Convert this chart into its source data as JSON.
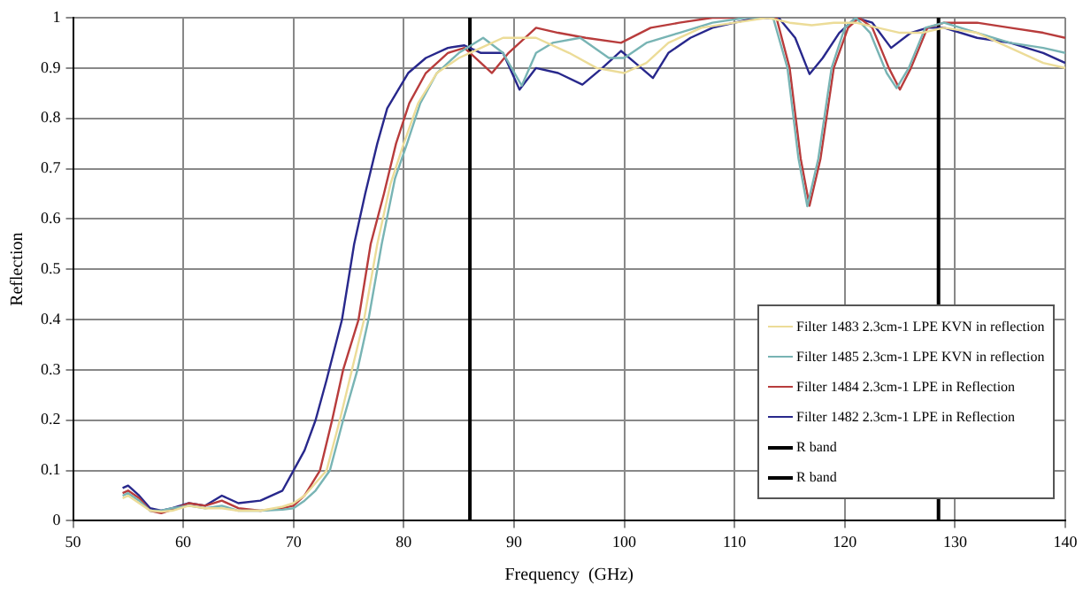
{
  "chart_data": {
    "type": "line",
    "xlabel": "Frequency  (GHz)",
    "ylabel": "Reflection",
    "xlim": [
      50,
      140
    ],
    "xticks": [
      50,
      60,
      70,
      80,
      90,
      100,
      110,
      120,
      130,
      140
    ],
    "ylim": [
      0,
      1
    ],
    "yticks": [
      0,
      0.1,
      0.2,
      0.3,
      0.4,
      0.5,
      0.6,
      0.7,
      0.8,
      0.9,
      1
    ],
    "grid": true,
    "legend": "bottom right",
    "marker": "none",
    "line_style": "solid",
    "series": [
      {
        "name": "Filter 1483 2.3cm-1 LPE KVN in reflection",
        "color": "#ecdc98",
        "x": [
          54.5,
          55,
          56,
          57,
          58,
          59,
          60.5,
          62,
          63.5,
          65,
          67,
          69,
          70,
          71,
          73,
          74.2,
          75.3,
          76.4,
          77.6,
          78.8,
          80,
          81.3,
          83,
          85,
          87,
          89,
          92,
          95,
          97.5,
          100,
          102,
          104,
          107,
          110,
          113,
          115,
          117,
          119,
          121,
          123,
          125,
          127,
          129,
          132,
          135,
          138,
          140
        ],
        "values": [
          0.045,
          0.05,
          0.035,
          0.02,
          0.018,
          0.02,
          0.03,
          0.025,
          0.025,
          0.02,
          0.02,
          0.028,
          0.035,
          0.05,
          0.1,
          0.2,
          0.3,
          0.4,
          0.55,
          0.67,
          0.75,
          0.83,
          0.89,
          0.92,
          0.94,
          0.96,
          0.96,
          0.93,
          0.9,
          0.89,
          0.91,
          0.95,
          0.98,
          0.99,
          1,
          0.99,
          0.985,
          0.99,
          0.99,
          0.98,
          0.97,
          0.97,
          0.98,
          0.97,
          0.94,
          0.91,
          0.9
        ]
      },
      {
        "name": "Filter 1485 2.3cm-1 LPE KVN in reflection",
        "color": "#78b4b4",
        "x": [
          54.5,
          55,
          56,
          57,
          58,
          59,
          60.5,
          62,
          63.5,
          65,
          67,
          69,
          70,
          71,
          72,
          73.3,
          74.5,
          75.8,
          76.8,
          78,
          79.2,
          80.3,
          81.5,
          83,
          85,
          87.2,
          89,
          90.7,
          92,
          93.5,
          96,
          98.6,
          100,
          102,
          105,
          108,
          111,
          113.5,
          114.8,
          115.8,
          116.6,
          117.6,
          118.8,
          120,
          121,
          122.3,
          123.8,
          124.7,
          125.8,
          127.3,
          129,
          132,
          135,
          138,
          140
        ],
        "values": [
          0.05,
          0.055,
          0.04,
          0.02,
          0.02,
          0.025,
          0.03,
          0.025,
          0.03,
          0.02,
          0.02,
          0.022,
          0.025,
          0.04,
          0.06,
          0.1,
          0.2,
          0.3,
          0.4,
          0.55,
          0.68,
          0.75,
          0.83,
          0.89,
          0.93,
          0.96,
          0.93,
          0.865,
          0.93,
          0.95,
          0.96,
          0.92,
          0.92,
          0.95,
          0.97,
          0.99,
          1,
          1,
          0.9,
          0.72,
          0.625,
          0.72,
          0.9,
          0.98,
          1,
          0.97,
          0.89,
          0.86,
          0.9,
          0.98,
          0.99,
          0.97,
          0.95,
          0.94,
          0.93
        ]
      },
      {
        "name": "Filter 1484 2.3cm-1 LPE in Reflection",
        "color": "#b83c3c",
        "x": [
          54.5,
          55,
          56,
          57,
          58,
          59,
          60.5,
          62,
          63.5,
          65,
          67,
          69,
          70,
          71,
          72.4,
          73.5,
          74.5,
          75.9,
          77,
          78.2,
          79.3,
          80.5,
          82,
          84,
          85.5,
          86.5,
          88,
          89.5,
          92,
          94,
          96.5,
          99.7,
          102.4,
          105,
          108,
          113.8,
          115,
          116,
          116.8,
          117.8,
          119,
          120.3,
          121.3,
          122.5,
          124,
          125,
          126,
          127.5,
          129,
          132,
          135,
          138,
          140
        ],
        "values": [
          0.055,
          0.06,
          0.045,
          0.02,
          0.015,
          0.022,
          0.035,
          0.03,
          0.04,
          0.025,
          0.02,
          0.025,
          0.03,
          0.05,
          0.1,
          0.2,
          0.3,
          0.4,
          0.55,
          0.65,
          0.75,
          0.83,
          0.89,
          0.93,
          0.94,
          0.92,
          0.89,
          0.93,
          0.98,
          0.97,
          0.96,
          0.95,
          0.98,
          0.99,
          1,
          1,
          0.9,
          0.72,
          0.626,
          0.72,
          0.9,
          0.98,
          1,
          0.98,
          0.9,
          0.857,
          0.9,
          0.98,
          0.99,
          0.99,
          0.98,
          0.97,
          0.96
        ]
      },
      {
        "name": "Filter 1482 2.3cm-1 LPE in Reflection",
        "color": "#28288c",
        "x": [
          54.5,
          55,
          56,
          57,
          58,
          59,
          60.5,
          62,
          63.5,
          65,
          67,
          69,
          70,
          71,
          72,
          73,
          74.4,
          75.5,
          76.5,
          77.6,
          78.5,
          80.4,
          82,
          84,
          85.5,
          87,
          89,
          90.5,
          92,
          94,
          96.2,
          98,
          99.7,
          101,
          102.6,
          104,
          106,
          108,
          110,
          112,
          114,
          115.5,
          116.8,
          118,
          119.5,
          121,
          122.5,
          124.2,
          126,
          127.5,
          129,
          132,
          135,
          138,
          140
        ],
        "values": [
          0.065,
          0.07,
          0.05,
          0.025,
          0.02,
          0.025,
          0.035,
          0.03,
          0.05,
          0.035,
          0.04,
          0.06,
          0.1,
          0.14,
          0.2,
          0.28,
          0.4,
          0.55,
          0.65,
          0.75,
          0.82,
          0.89,
          0.92,
          0.94,
          0.945,
          0.93,
          0.93,
          0.857,
          0.9,
          0.89,
          0.867,
          0.9,
          0.934,
          0.91,
          0.88,
          0.93,
          0.96,
          0.98,
          0.99,
          1,
          1,
          0.96,
          0.888,
          0.92,
          0.97,
          1,
          0.99,
          0.94,
          0.97,
          0.98,
          0.98,
          0.96,
          0.95,
          0.93,
          0.91
        ]
      },
      {
        "name": "R band",
        "color": "#000000",
        "x": [
          86,
          86
        ],
        "values": [
          0,
          1
        ]
      },
      {
        "name": "R band",
        "color": "#000000",
        "x": [
          128.5,
          128.5
        ],
        "values": [
          0,
          1
        ]
      }
    ]
  }
}
